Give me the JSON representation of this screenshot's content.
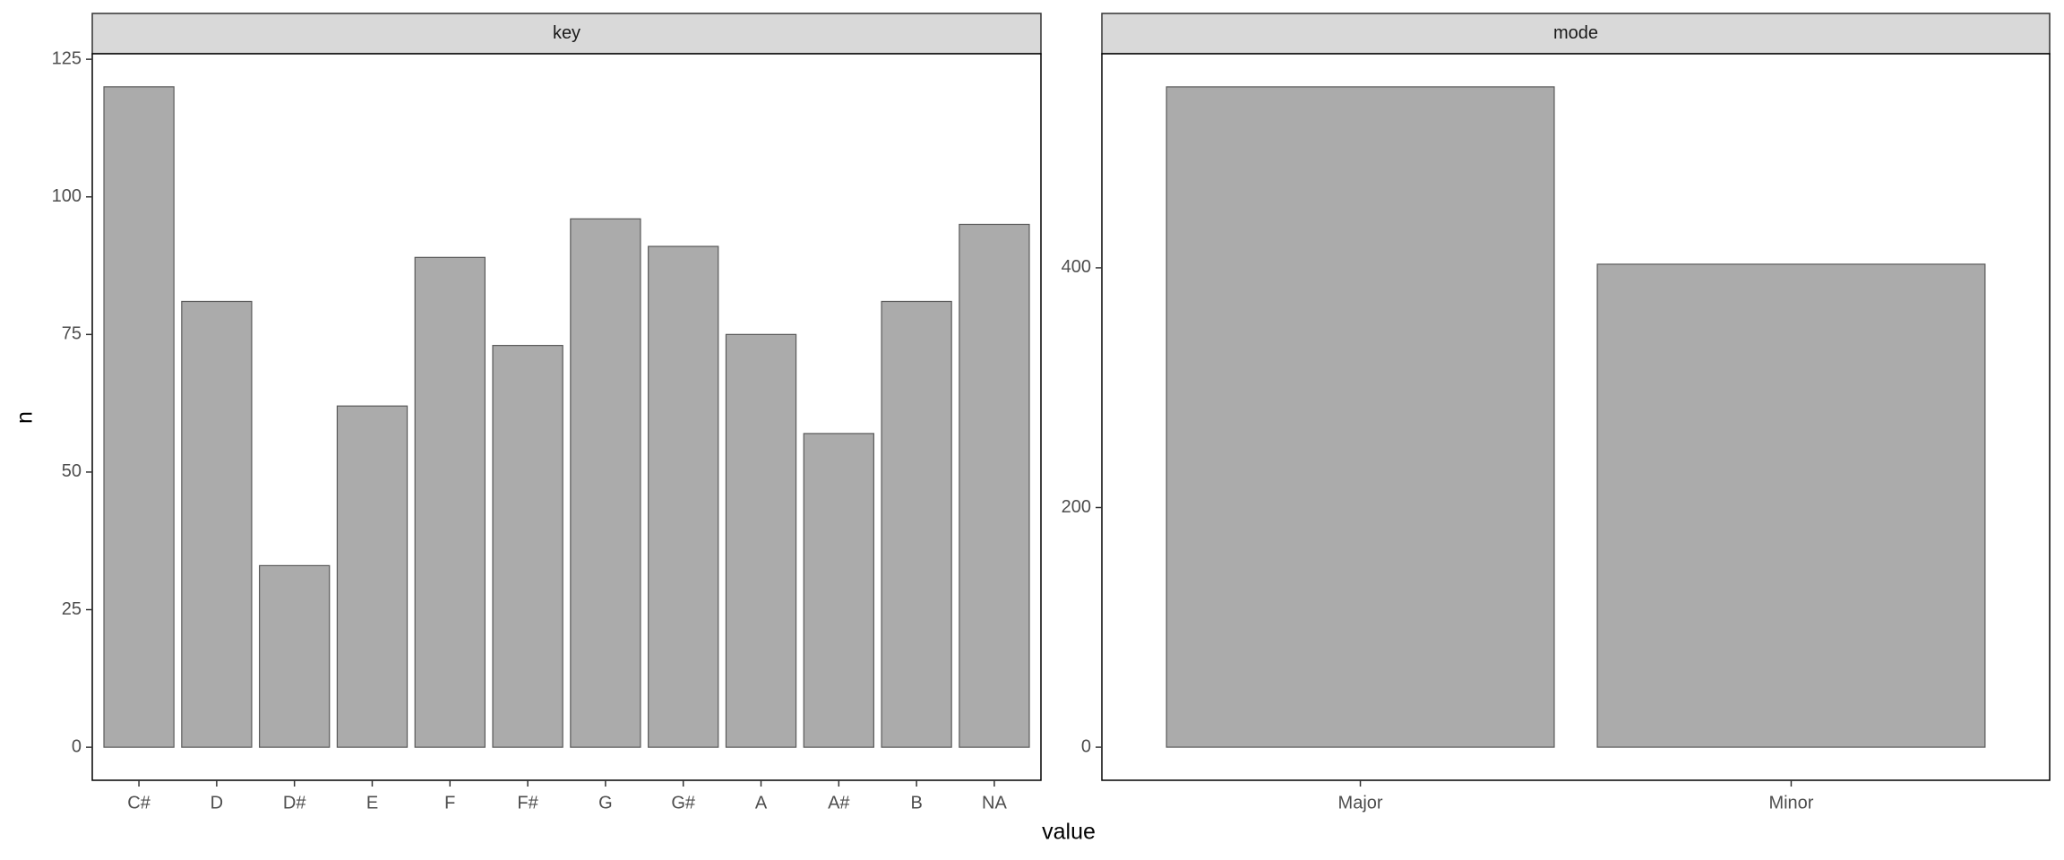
{
  "chart_data": [
    {
      "type": "bar",
      "title": "key",
      "xlabel": "value",
      "ylabel": "n",
      "categories": [
        "C#",
        "D",
        "D#",
        "E",
        "F",
        "F#",
        "G",
        "G#",
        "A",
        "A#",
        "B",
        "NA"
      ],
      "values": [
        120,
        81,
        33,
        62,
        89,
        73,
        96,
        91,
        75,
        57,
        81,
        95
      ],
      "color": "#ababab",
      "ylim": [
        -6,
        126
      ],
      "yticks": [
        0,
        25,
        50,
        75,
        100,
        125
      ]
    },
    {
      "type": "bar",
      "title": "mode",
      "categories": [
        "Major",
        "Minor"
      ],
      "values": [
        551,
        403
      ],
      "color": "#ababab",
      "ylim": [
        -27.6,
        578.6
      ],
      "yticks": [
        0,
        200,
        400
      ]
    }
  ]
}
